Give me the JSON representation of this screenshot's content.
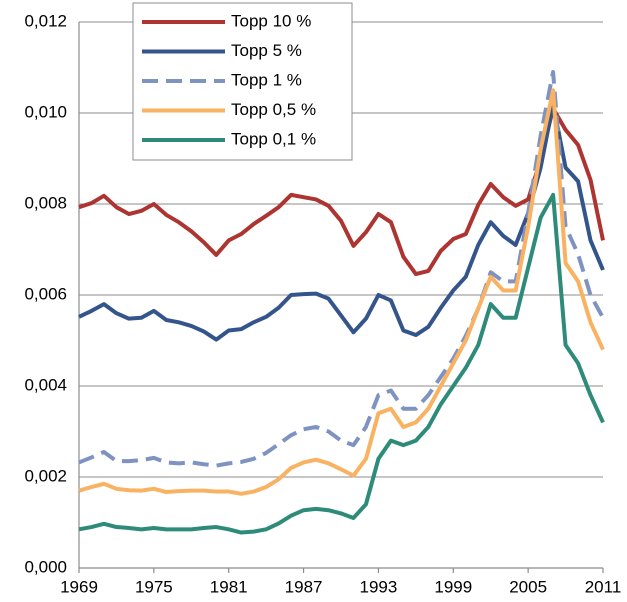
{
  "chart_data": {
    "type": "line",
    "x": [
      1969,
      1970,
      1971,
      1972,
      1973,
      1974,
      1975,
      1976,
      1977,
      1978,
      1979,
      1980,
      1981,
      1982,
      1983,
      1984,
      1985,
      1986,
      1987,
      1988,
      1989,
      1990,
      1991,
      1992,
      1993,
      1994,
      1995,
      1996,
      1997,
      1998,
      1999,
      2000,
      2001,
      2002,
      2003,
      2004,
      2005,
      2006,
      2007,
      2008,
      2009,
      2010,
      2011
    ],
    "xlim": [
      1969,
      2011
    ],
    "xticks": [
      1969,
      1975,
      1981,
      1987,
      1993,
      1999,
      2005,
      2011
    ],
    "ylim": [
      0,
      0.012
    ],
    "yticks": [
      {
        "value": 0,
        "label": "0,000"
      },
      {
        "value": 0.002,
        "label": "0,002"
      },
      {
        "value": 0.004,
        "label": "0,004"
      },
      {
        "value": 0.006,
        "label": "0,006"
      },
      {
        "value": 0.008,
        "label": "0,008"
      },
      {
        "value": 0.01,
        "label": "0,010"
      },
      {
        "value": 0.012,
        "label": "0,012"
      }
    ],
    "grid": true,
    "legend": "top-left",
    "series": [
      {
        "name": "Topp 10 %",
        "color": "#ad3430",
        "values": [
          0.00793,
          0.00802,
          0.00818,
          0.00793,
          0.00778,
          0.00785,
          0.008,
          0.00776,
          0.0076,
          0.0074,
          0.00716,
          0.00688,
          0.0072,
          0.00734,
          0.00756,
          0.00774,
          0.00793,
          0.0082,
          0.00815,
          0.0081,
          0.00796,
          0.00763,
          0.00708,
          0.00738,
          0.00778,
          0.0076,
          0.00684,
          0.00646,
          0.00653,
          0.00697,
          0.00723,
          0.00734,
          0.00798,
          0.00844,
          0.00815,
          0.00796,
          0.0081,
          0.00897,
          0.0101,
          0.00963,
          0.0093,
          0.00853,
          0.0072
        ]
      },
      {
        "name": "Topp 5 %",
        "color": "#34558b",
        "values": [
          0.00552,
          0.00565,
          0.0058,
          0.0056,
          0.00548,
          0.0055,
          0.00565,
          0.00545,
          0.0054,
          0.00532,
          0.0052,
          0.00502,
          0.00522,
          0.00525,
          0.0054,
          0.00552,
          0.00572,
          0.006,
          0.00602,
          0.00603,
          0.00592,
          0.00555,
          0.00518,
          0.00548,
          0.006,
          0.00588,
          0.00522,
          0.00512,
          0.0053,
          0.00572,
          0.0061,
          0.0064,
          0.0071,
          0.0076,
          0.0073,
          0.0071,
          0.0078,
          0.0088,
          0.0102,
          0.0088,
          0.0085,
          0.0072,
          0.00655
        ]
      },
      {
        "name": "Topp 1 %",
        "color": "#7f93c2",
        "dashed": true,
        "values": [
          0.00232,
          0.00243,
          0.00255,
          0.00235,
          0.00235,
          0.00237,
          0.00242,
          0.00232,
          0.0023,
          0.00232,
          0.00228,
          0.00225,
          0.0023,
          0.00233,
          0.0024,
          0.00253,
          0.00272,
          0.00292,
          0.00305,
          0.0031,
          0.003,
          0.0028,
          0.0027,
          0.0031,
          0.0038,
          0.0039,
          0.0035,
          0.0035,
          0.0038,
          0.0042,
          0.0046,
          0.0051,
          0.0057,
          0.0065,
          0.0063,
          0.0063,
          0.0078,
          0.0095,
          0.0109,
          0.0075,
          0.0069,
          0.006,
          0.0055
        ]
      },
      {
        "name": "Topp 0,5 %",
        "color": "#f9b262",
        "values": [
          0.0017,
          0.00178,
          0.00185,
          0.00174,
          0.00171,
          0.0017,
          0.00174,
          0.00167,
          0.00169,
          0.0017,
          0.0017,
          0.00168,
          0.00168,
          0.00163,
          0.00168,
          0.00178,
          0.00195,
          0.0022,
          0.00232,
          0.00238,
          0.0023,
          0.00217,
          0.00203,
          0.0024,
          0.0034,
          0.0035,
          0.0031,
          0.0032,
          0.0035,
          0.004,
          0.0045,
          0.005,
          0.0057,
          0.0064,
          0.0061,
          0.0061,
          0.0075,
          0.0092,
          0.0105,
          0.0067,
          0.0063,
          0.0054,
          0.0048
        ]
      },
      {
        "name": "Topp 0,1 %",
        "color": "#2e8b7a",
        "values": [
          0.00085,
          0.0009,
          0.00097,
          0.0009,
          0.00088,
          0.00085,
          0.00088,
          0.00085,
          0.00085,
          0.00085,
          0.00088,
          0.0009,
          0.00085,
          0.00078,
          0.0008,
          0.00085,
          0.00098,
          0.00115,
          0.00127,
          0.0013,
          0.00127,
          0.0012,
          0.0011,
          0.0014,
          0.0024,
          0.0028,
          0.0027,
          0.0028,
          0.0031,
          0.0036,
          0.004,
          0.0044,
          0.0049,
          0.0058,
          0.0055,
          0.0055,
          0.0066,
          0.0077,
          0.0082,
          0.0049,
          0.0045,
          0.0038,
          0.0032
        ]
      }
    ]
  }
}
